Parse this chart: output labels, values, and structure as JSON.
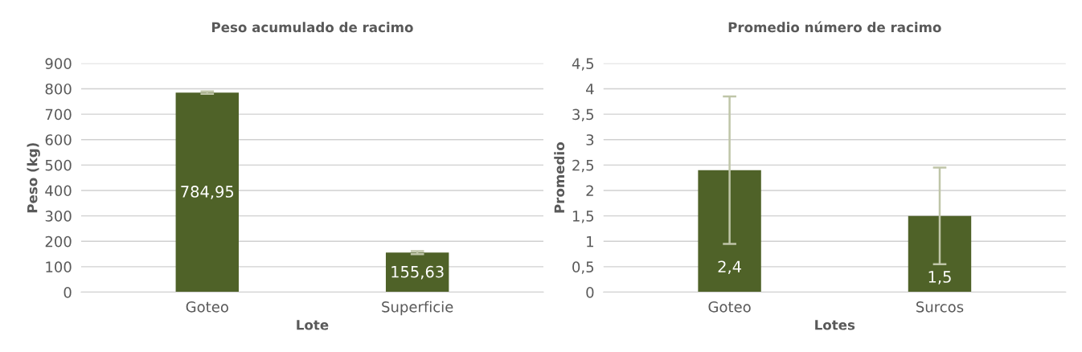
{
  "chart_data": [
    {
      "type": "bar",
      "title": "Peso acumulado de racimo",
      "xlabel": "Lote",
      "ylabel": "Peso (kg)",
      "categories": [
        "Goteo",
        "Superficie"
      ],
      "values": [
        784.95,
        155.63
      ],
      "errors": [
        5,
        6
      ],
      "value_labels": [
        "784,95",
        "155,63"
      ],
      "color": "#4f6228",
      "ylim": [
        0,
        900
      ],
      "yticks": [
        0,
        100,
        200,
        300,
        400,
        500,
        600,
        700,
        800,
        900
      ],
      "grid": "y",
      "legend": false
    },
    {
      "type": "bar",
      "title": "Promedio número de racimo",
      "xlabel": "Lotes",
      "ylabel": "Promedio",
      "categories": [
        "Goteo",
        "Surcos"
      ],
      "values": [
        2.4,
        1.5
      ],
      "errors": [
        1.45,
        0.95
      ],
      "value_labels": [
        "2,4",
        "1,5"
      ],
      "color": "#4f6228",
      "ylim": [
        0,
        4.5
      ],
      "yticks": [
        0,
        {
          "value": 0.5,
          "label": "0,5"
        },
        1,
        {
          "value": 1.5,
          "label": "1,5"
        },
        2,
        {
          "value": 2.5,
          "label": "2,5"
        },
        3,
        {
          "value": 3.5,
          "label": "3,5"
        },
        4,
        {
          "value": 4.5,
          "label": "4,5"
        }
      ],
      "grid": "y",
      "legend": false
    }
  ]
}
